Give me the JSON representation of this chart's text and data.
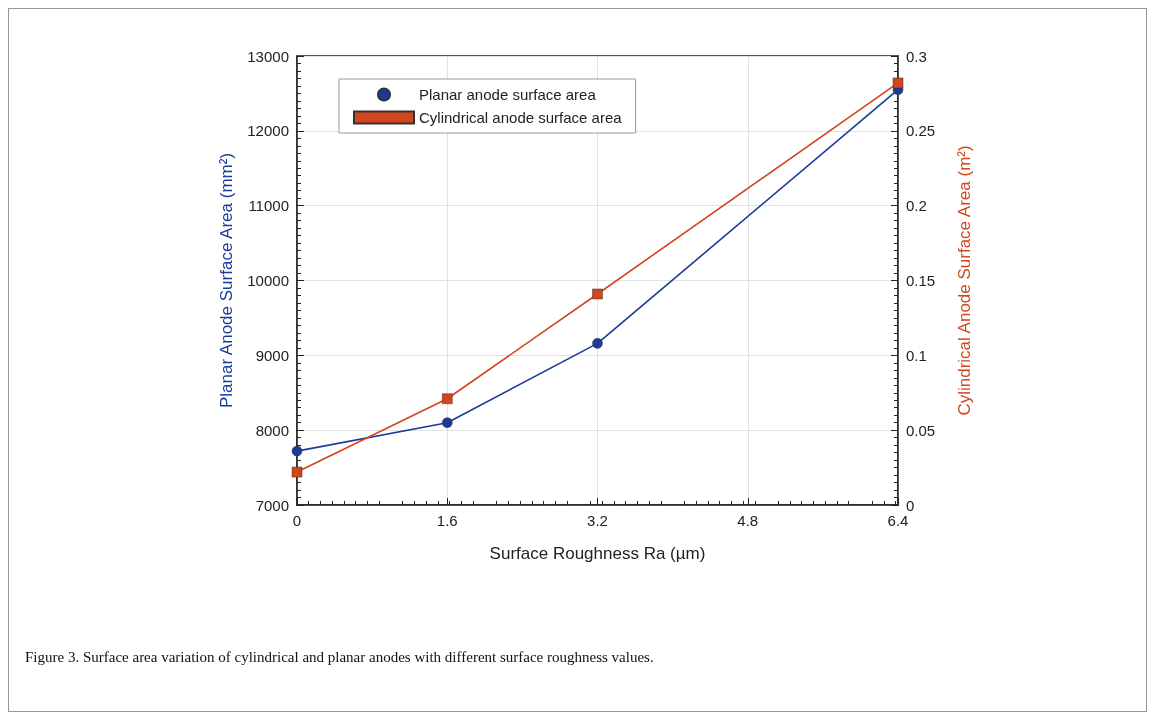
{
  "chart_data": {
    "type": "line",
    "xlabel": "Surface Roughness Ra (µm)",
    "ylabel": "Planar Anode Surface Area (mm²)",
    "y2label": "Cylindrical Anode Surface Area (m²)",
    "x": [
      0,
      1.6,
      3.2,
      6.4
    ],
    "series": [
      {
        "name": "Planar anode surface area",
        "color": "#1a3a9c",
        "values": [
          7720,
          8100,
          9160,
          12550
        ],
        "marker": "circle"
      },
      {
        "name": "Cylindrical anode surface area",
        "color": "#d4451b",
        "values": [
          0.022,
          0.071,
          0.141,
          0.282
        ],
        "marker": "square",
        "axis": "y2"
      }
    ],
    "xlim": [
      0,
      6.4
    ],
    "xticks": [
      0,
      1.6,
      3.2,
      4.8,
      6.4
    ],
    "ylim": [
      7000,
      13000
    ],
    "yticks": [
      7000,
      8000,
      9000,
      10000,
      11000,
      12000,
      13000
    ],
    "y2lim": [
      0,
      0.3
    ],
    "y2ticks": [
      0,
      0.05,
      0.1,
      0.15,
      0.2,
      0.25,
      0.3
    ],
    "grid": true,
    "legend": "top left",
    "line_style": "solid",
    "annotations": [
      "Figure 3. Surface area variation of cylindrical and planar anodes with different surface roughness values."
    ]
  }
}
